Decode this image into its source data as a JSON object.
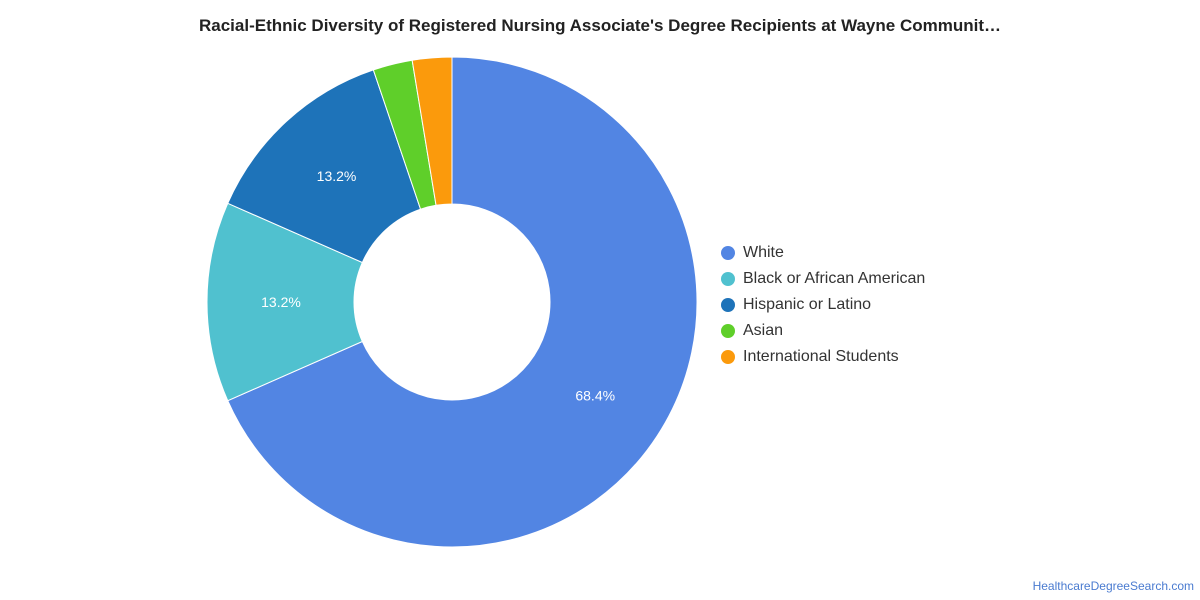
{
  "title": "Racial-Ethnic Diversity of Registered Nursing Associate's Degree Recipients at Wayne Communit…",
  "watermark": "HealthcareDegreeSearch.com",
  "chart_data": {
    "type": "pie",
    "donut": true,
    "legend_position": "right",
    "slices": [
      {
        "label": "White",
        "value": 68.4,
        "color": "#5285e3",
        "data_label": "68.4%"
      },
      {
        "label": "Black or African American",
        "value": 13.2,
        "color": "#50c1cf",
        "data_label": "13.2%"
      },
      {
        "label": "Hispanic or Latino",
        "value": 13.2,
        "color": "#1e73b9",
        "data_label": "13.2%"
      },
      {
        "label": "Asian",
        "value": 2.6,
        "color": "#5fcf2a",
        "data_label": ""
      },
      {
        "label": "International Students",
        "value": 2.6,
        "color": "#fb9a0c",
        "data_label": ""
      }
    ]
  }
}
